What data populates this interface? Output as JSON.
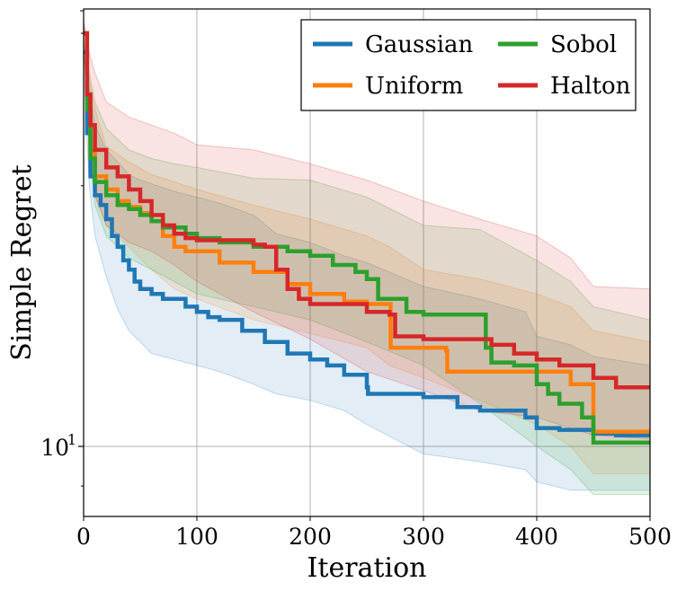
{
  "chart_data": {
    "type": "line",
    "title": "",
    "xlabel": "Iteration",
    "ylabel": "Simple Regret",
    "xlim": [
      0,
      500
    ],
    "ylim": [
      8.3,
      32
    ],
    "yscale": "log",
    "grid": true,
    "legend_position": "top-right",
    "legend_columns": 2,
    "xticks": [
      0,
      100,
      200,
      300,
      400,
      500
    ],
    "xtick_labels": [
      "0",
      "100",
      "200",
      "300",
      "400",
      "500"
    ],
    "yticks": [
      10
    ],
    "ytick_labels": [
      "10^1"
    ],
    "series": [
      {
        "name": "Gaussian",
        "color": "#1f77b4",
        "x": [
          0,
          3,
          6,
          10,
          15,
          20,
          25,
          30,
          35,
          40,
          45,
          50,
          60,
          70,
          90,
          100,
          110,
          120,
          140,
          160,
          180,
          200,
          215,
          230,
          250,
          251,
          280,
          300,
          330,
          350,
          390,
          400,
          420,
          450,
          470,
          500
        ],
        "y": [
          28.5,
          23,
          20.5,
          19.5,
          19,
          18.3,
          17.5,
          17,
          16.4,
          16,
          15.5,
          15.2,
          15,
          14.8,
          14.5,
          14.3,
          14.1,
          14,
          13.6,
          13.2,
          12.8,
          12.6,
          12.4,
          12.1,
          11.7,
          11.5,
          11.5,
          11.4,
          11.1,
          11,
          10.8,
          10.5,
          10.45,
          10.35,
          10.3,
          10.3
        ]
      },
      {
        "name": "Uniform",
        "color": "#ff7f0e",
        "x": [
          0,
          3,
          6,
          10,
          20,
          30,
          40,
          50,
          60,
          70,
          80,
          90,
          100,
          120,
          150,
          180,
          200,
          230,
          250,
          270,
          271,
          300,
          320,
          321,
          400,
          430,
          450,
          500
        ],
        "y": [
          30,
          24.5,
          22,
          20.5,
          19.8,
          19.2,
          18.9,
          18.6,
          18.2,
          17.5,
          17,
          16.8,
          16.8,
          16.3,
          15.9,
          15.4,
          15,
          14.7,
          14.6,
          14.6,
          13,
          13,
          12.9,
          12.2,
          12.2,
          11.8,
          10.4,
          10.4
        ]
      },
      {
        "name": "Sobol",
        "color": "#2ca02c",
        "x": [
          0,
          3,
          6,
          10,
          20,
          30,
          40,
          50,
          60,
          70,
          90,
          100,
          120,
          150,
          180,
          200,
          220,
          240,
          250,
          260,
          280,
          285,
          300,
          350,
          355,
          360,
          380,
          400,
          410,
          420,
          440,
          450,
          500
        ],
        "y": [
          30,
          24.5,
          21.5,
          20.2,
          19.5,
          19,
          18.8,
          18.5,
          18.2,
          17.9,
          17.6,
          17.4,
          17.2,
          17,
          16.8,
          16.6,
          16.2,
          15.9,
          15.6,
          14.8,
          14.8,
          14.3,
          14.2,
          14.2,
          13,
          12.5,
          12.4,
          11.8,
          11.5,
          11.2,
          10.8,
          10.1,
          10.1
        ]
      },
      {
        "name": "Halton",
        "color": "#d62728",
        "x": [
          0,
          3,
          6,
          10,
          20,
          30,
          40,
          50,
          60,
          70,
          80,
          90,
          100,
          150,
          160,
          170,
          180,
          190,
          200,
          250,
          270,
          275,
          300,
          360,
          380,
          400,
          420,
          450,
          470,
          500
        ],
        "y": [
          30,
          25.5,
          23.5,
          22,
          21,
          20.5,
          19.8,
          19.2,
          18.5,
          18,
          17.6,
          17.4,
          17.3,
          17.1,
          17,
          16,
          15.2,
          14.8,
          14.6,
          14.3,
          14.2,
          13.4,
          13.3,
          13.1,
          12.8,
          12.6,
          12.4,
          12,
          11.7,
          11.7
        ]
      }
    ],
    "confidence_bands": [
      {
        "series": "Gaussian",
        "x": [
          0,
          5,
          10,
          20,
          30,
          40,
          50,
          60,
          80,
          100,
          120,
          150,
          170,
          200,
          230,
          250,
          300,
          350,
          390,
          400,
          430,
          450,
          500
        ],
        "lower": [
          27.5,
          20,
          17.5,
          15.7,
          14.4,
          13.6,
          13.2,
          12.8,
          12.6,
          12.4,
          12.2,
          11.8,
          11.5,
          11.3,
          11,
          10.6,
          9.8,
          9.6,
          9.4,
          9.1,
          8.9,
          8.9,
          8.9
        ],
        "upper": [
          29.5,
          26,
          23.5,
          22,
          21.3,
          20.6,
          20.3,
          20.1,
          19.7,
          19.4,
          19.1,
          18.5,
          17.6,
          17.2,
          16.6,
          16.3,
          15.3,
          14.8,
          14.3,
          13.4,
          13.1,
          12.7,
          12.4
        ]
      },
      {
        "series": "Uniform",
        "x": [
          0,
          5,
          10,
          20,
          40,
          60,
          80,
          100,
          150,
          200,
          250,
          270,
          300,
          350,
          400,
          430,
          450,
          500
        ],
        "lower": [
          29,
          22,
          19.5,
          18,
          17,
          16,
          15.2,
          14.8,
          14,
          13.5,
          13,
          12.4,
          12,
          11.3,
          10.6,
          10,
          9.3,
          9.3
        ],
        "upper": [
          31,
          26.5,
          24.5,
          22.2,
          21.3,
          20.6,
          20.2,
          19.8,
          19,
          18.3,
          17.5,
          17,
          16,
          15.6,
          15,
          14.5,
          13.6,
          13.2
        ]
      },
      {
        "series": "Sobol",
        "x": [
          0,
          5,
          10,
          20,
          40,
          60,
          80,
          100,
          150,
          200,
          250,
          300,
          350,
          400,
          430,
          450,
          500
        ],
        "lower": [
          29,
          22,
          19,
          17.5,
          16.5,
          16,
          15.5,
          15,
          14.5,
          14,
          13.2,
          12.4,
          11.2,
          10,
          9.4,
          8.8,
          8.8
        ],
        "upper": [
          31,
          27,
          25,
          23.3,
          22,
          21.5,
          21.2,
          21,
          20.4,
          20.3,
          19.4,
          18,
          17.8,
          16.4,
          15.5,
          14.5,
          14
        ]
      },
      {
        "series": "Halton",
        "x": [
          0,
          5,
          10,
          20,
          40,
          60,
          80,
          100,
          150,
          200,
          250,
          300,
          350,
          400,
          430,
          450,
          500
        ],
        "lower": [
          29,
          22.5,
          19.5,
          18,
          17.2,
          16.8,
          16.2,
          15.5,
          14.3,
          13.3,
          12.2,
          11.6,
          11,
          10.8,
          10.5,
          10.3,
          10.2
        ],
        "upper": [
          31,
          28.5,
          27,
          25,
          24,
          23.5,
          23,
          22.3,
          22,
          21.2,
          20.3,
          19.2,
          18.3,
          17.5,
          16.5,
          15.3,
          15.2
        ]
      }
    ]
  }
}
